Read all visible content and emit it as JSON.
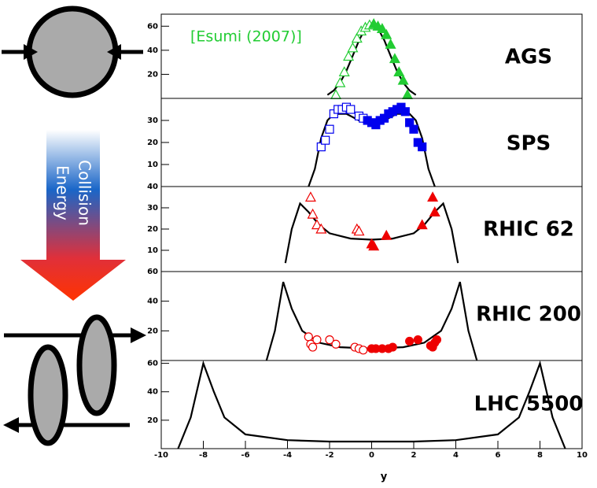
{
  "illustration": {
    "label_lines": [
      "Collision",
      "Energy"
    ]
  },
  "chart_data": [
    {
      "type": "line",
      "title": "AGS",
      "annotation": "[Esumi (2007)]",
      "annotation_color": "#22cc33",
      "xlim": [
        -10,
        10
      ],
      "ylim": [
        0,
        70
      ],
      "yticks": [
        20,
        40,
        60
      ],
      "series": [
        {
          "color": "#000000",
          "marker": "none",
          "x": [
            -2.1,
            -1.8,
            -1.5,
            -1.2,
            -0.9,
            -0.6,
            -0.3,
            0,
            0.3,
            0.6,
            0.9,
            1.2,
            1.5,
            1.8,
            2.1
          ],
          "values": [
            2.9,
            6.6,
            13,
            22.9,
            35.4,
            48.3,
            58.3,
            62,
            58.3,
            48.3,
            35.4,
            22.9,
            13,
            6.6,
            2.9
          ]
        },
        {
          "color": "#22cc33",
          "marker": "triangle-open",
          "x": [
            -1.7,
            -1.5,
            -1.3,
            -1.1,
            -0.9,
            -0.7,
            -0.5,
            -0.3,
            -0.1
          ],
          "values": [
            3,
            13,
            22,
            35,
            42,
            50,
            56,
            59,
            61
          ]
        },
        {
          "color": "#22cc33",
          "marker": "triangle",
          "x": [
            0.1,
            0.3,
            0.5,
            0.7,
            0.9,
            1.1,
            1.3,
            1.5,
            1.7
          ],
          "values": [
            62,
            60,
            58,
            53,
            45,
            33,
            22,
            15,
            3
          ]
        }
      ]
    },
    {
      "type": "line",
      "title": "SPS",
      "xlim": [
        -10,
        10
      ],
      "ylim": [
        0,
        40
      ],
      "yticks": [
        10,
        20,
        30
      ],
      "series": [
        {
          "color": "#000000",
          "marker": "none",
          "x": [
            -3,
            -2.7,
            -2.4,
            -2.1,
            -1.8,
            -1.2,
            -0.6,
            0,
            0.6,
            1.2,
            1.8,
            2.1,
            2.4,
            2.7,
            3
          ],
          "values": [
            0,
            8,
            22,
            30,
            33,
            33,
            30,
            28,
            30,
            33,
            33,
            30,
            22,
            8,
            0
          ]
        },
        {
          "color": "#0000ee",
          "marker": "square-open",
          "x": [
            -2.4,
            -2.2,
            -2.0,
            -1.8,
            -1.6,
            -1.4,
            -1.2,
            -1.0,
            -0.6,
            -0.4
          ],
          "values": [
            18,
            21,
            26,
            33,
            35,
            35,
            36,
            35,
            32,
            31
          ]
        },
        {
          "color": "#0000ee",
          "marker": "square",
          "x": [
            -0.2,
            0,
            0.2,
            0.4,
            0.6,
            0.8,
            1.0,
            1.2,
            1.4,
            1.6,
            1.8,
            2.0,
            2.2,
            2.4
          ],
          "values": [
            30,
            29,
            28,
            30,
            31,
            33,
            34,
            35,
            36,
            34,
            29,
            26,
            20,
            18
          ]
        }
      ]
    },
    {
      "type": "line",
      "title": "RHIC 62",
      "xlim": [
        -10,
        10
      ],
      "ylim": [
        0,
        40
      ],
      "yticks": [
        10,
        20,
        30,
        40
      ],
      "series": [
        {
          "color": "#000000",
          "marker": "none",
          "x": [
            -4.1,
            -3.8,
            -3.4,
            -3.0,
            -2.5,
            -2,
            -1,
            0,
            1,
            2,
            2.5,
            3,
            3.4,
            3.8,
            4.1
          ],
          "values": [
            4,
            20,
            32,
            28,
            22,
            18,
            15.5,
            15,
            15.5,
            18,
            22,
            28,
            32,
            20,
            4
          ]
        },
        {
          "color": "#ee0000",
          "marker": "triangle-open",
          "x": [
            -2.9,
            -2.8,
            -2.6,
            -2.4,
            -0.7,
            -0.6
          ],
          "values": [
            35,
            27,
            22,
            20,
            20,
            19
          ]
        },
        {
          "color": "#ee0000",
          "marker": "triangle",
          "x": [
            0,
            0.1,
            0.7,
            2.4,
            2.9,
            3.0
          ],
          "values": [
            13,
            12,
            17,
            22,
            35,
            28
          ]
        }
      ]
    },
    {
      "type": "line",
      "title": "RHIC 200",
      "xlim": [
        -10,
        10
      ],
      "ylim": [
        0,
        60
      ],
      "yticks": [
        20,
        40,
        60
      ],
      "series": [
        {
          "color": "#000000",
          "marker": "none",
          "x": [
            -5,
            -4.6,
            -4.2,
            -3.8,
            -3.3,
            -2.5,
            -1.5,
            0,
            1.5,
            2.5,
            3.3,
            3.8,
            4.2,
            4.6,
            5
          ],
          "values": [
            0,
            20,
            53,
            35,
            20,
            12,
            9,
            8,
            9,
            12,
            20,
            35,
            53,
            20,
            0
          ]
        },
        {
          "color": "#ee0000",
          "marker": "circle-open",
          "x": [
            -3,
            -2.9,
            -2.8,
            -2.6,
            -2,
            -1.7,
            -0.8,
            -0.6,
            -0.4
          ],
          "values": [
            16,
            11,
            9,
            14,
            14,
            11,
            9,
            8,
            7
          ]
        },
        {
          "color": "#ee0000",
          "marker": "circle",
          "x": [
            0,
            0.2,
            0.5,
            0.8,
            1.0,
            1.8,
            2.2,
            2.8,
            2.9,
            3.0,
            3.1
          ],
          "values": [
            8,
            8,
            8,
            8,
            9,
            13,
            14,
            10,
            9,
            12,
            14
          ]
        }
      ]
    },
    {
      "type": "line",
      "title": "LHC 5500",
      "xlabel": "y",
      "xlim": [
        -10,
        10
      ],
      "ylim": [
        0,
        62
      ],
      "yticks": [
        20,
        40,
        60
      ],
      "xticks": [
        -10,
        -8,
        -6,
        -4,
        -2,
        0,
        2,
        4,
        6,
        8,
        10
      ],
      "series": [
        {
          "color": "#000000",
          "marker": "none",
          "x": [
            -9.2,
            -8.6,
            -8,
            -7.5,
            -7,
            -6,
            -4,
            -2,
            0,
            2,
            4,
            6,
            7,
            7.5,
            8,
            8.6,
            9.2
          ],
          "values": [
            0,
            22,
            60,
            40,
            22,
            10,
            6,
            5,
            5,
            5,
            6,
            10,
            22,
            40,
            60,
            22,
            0
          ]
        }
      ]
    }
  ]
}
